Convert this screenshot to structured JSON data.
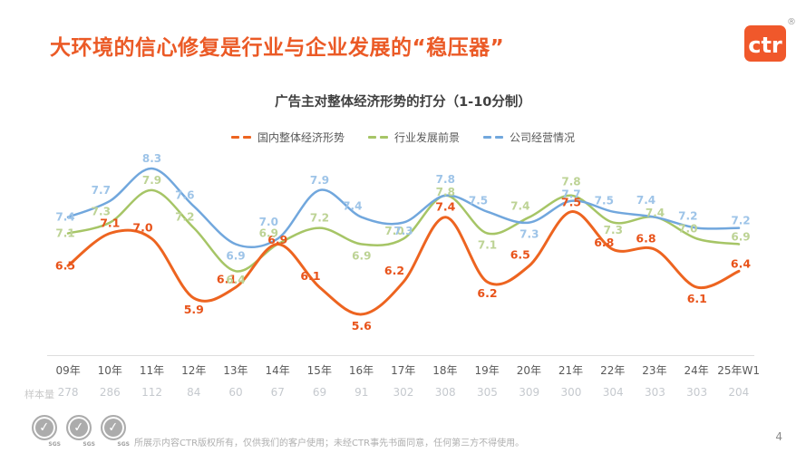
{
  "slide": {
    "title": "大环境的信心修复是行业与企业发展的“稳压器”",
    "title_color": "#EB5A26",
    "page_number": "4",
    "footer": {
      "disclaimer": "所展示内容CTR版权所有，仅供我们的客户使用；未经CTR事先书面同意，任何第三方不得使用。",
      "certification_badge": "SGS",
      "badge_check_glyph": "✓"
    },
    "logo": {
      "text": "ctr",
      "registered_mark": "®",
      "color": "#F0582B"
    }
  },
  "chart_data": {
    "type": "line",
    "title": "广告主对整体经济形势的打分（1-10分制）",
    "legend_position": "top",
    "grid": false,
    "ylim": [
      5,
      9
    ],
    "x_axis_note_label": "样本量",
    "categories": [
      "09年",
      "10年",
      "11年",
      "12年",
      "13年",
      "14年",
      "15年",
      "16年",
      "17年",
      "18年",
      "19年",
      "20年",
      "21年",
      "22年",
      "23年",
      "24年",
      "25年W1"
    ],
    "sample_sizes": [
      278,
      286,
      112,
      84,
      60,
      67,
      69,
      91,
      302,
      308,
      305,
      309,
      300,
      304,
      303,
      303,
      204
    ],
    "series": [
      {
        "name": "国内整体经济形势",
        "color": "#ED6420",
        "label_color": "#E8531A",
        "emphasis": true,
        "values": [
          6.5,
          7.1,
          7.0,
          5.9,
          6.1,
          6.9,
          6.1,
          5.6,
          6.2,
          7.4,
          6.2,
          6.5,
          7.5,
          6.8,
          6.8,
          6.1,
          6.4
        ]
      },
      {
        "name": "行业发展前景",
        "color": "#A6C566",
        "label_color": "#BDD395",
        "emphasis": false,
        "values": [
          7.1,
          7.3,
          7.9,
          7.2,
          6.4,
          6.9,
          7.2,
          6.9,
          7.0,
          7.8,
          7.1,
          7.4,
          7.8,
          7.3,
          7.4,
          7.0,
          6.9
        ]
      },
      {
        "name": "公司经营情况",
        "color": "#71A7DD",
        "label_color": "#9EC4E8",
        "emphasis": false,
        "values": [
          7.4,
          7.7,
          8.3,
          7.6,
          6.9,
          7.0,
          7.9,
          7.4,
          7.3,
          7.8,
          7.5,
          7.3,
          7.7,
          7.5,
          7.4,
          7.2,
          7.2
        ]
      }
    ]
  }
}
